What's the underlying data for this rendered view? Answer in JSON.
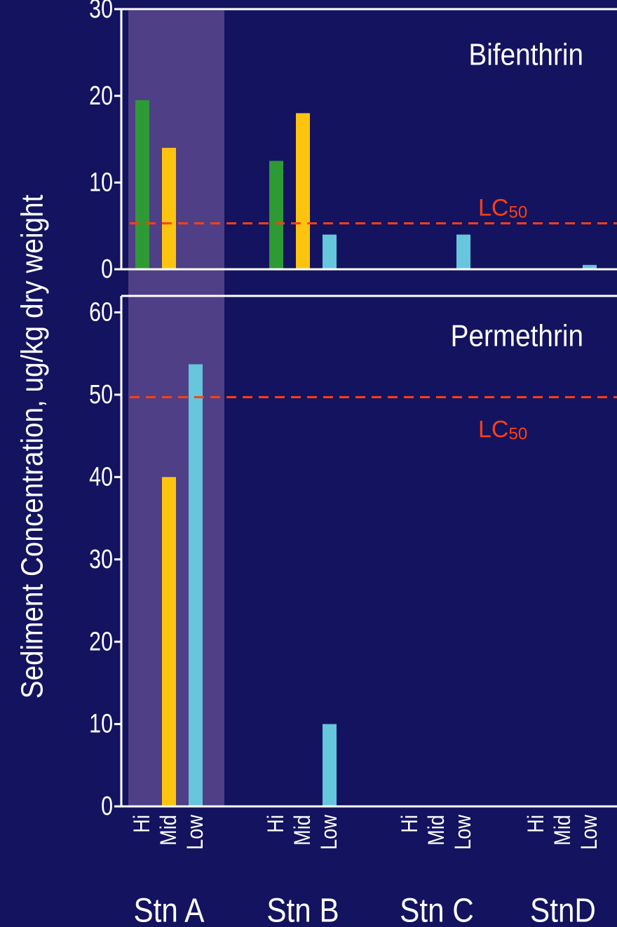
{
  "chart_data": [
    {
      "type": "bar",
      "title": "Bifenthrin",
      "ylabel": "Sediment Concentration, ug/kg dry weight",
      "ylim": [
        0,
        30
      ],
      "yticks": [
        0,
        10,
        20,
        30
      ],
      "stations": [
        "Stn A",
        "Stn B",
        "Stn C",
        "StnD"
      ],
      "levels": [
        "Hi",
        "Mid",
        "Low"
      ],
      "series": [
        {
          "name": "Hi",
          "values": [
            19.5,
            12.5,
            0,
            0
          ]
        },
        {
          "name": "Mid",
          "values": [
            14,
            18,
            0,
            0
          ]
        },
        {
          "name": "Low",
          "values": [
            0,
            4,
            4,
            0.5
          ]
        }
      ],
      "reference_line": {
        "label_main": "LC",
        "label_sub": "50",
        "value": 5.3
      },
      "highlight": "Stn A",
      "grid": false
    },
    {
      "type": "bar",
      "title": "Permethrin",
      "ylabel": "Sediment Concentration, ug/kg dry weight",
      "ylim": [
        0,
        62
      ],
      "yticks": [
        0,
        10,
        20,
        30,
        40,
        50,
        60
      ],
      "stations": [
        "Stn A",
        "Stn B",
        "Stn C",
        "StnD"
      ],
      "levels": [
        "Hi",
        "Mid",
        "Low"
      ],
      "series": [
        {
          "name": "Hi",
          "values": [
            0,
            0,
            0,
            0
          ]
        },
        {
          "name": "Mid",
          "values": [
            40,
            0,
            0,
            0
          ]
        },
        {
          "name": "Low",
          "values": [
            53.7,
            10,
            0,
            0
          ]
        }
      ],
      "reference_line": {
        "label_main": "LC",
        "label_sub": "50",
        "value": 49.7
      },
      "highlight": "Stn A",
      "grid": false
    }
  ],
  "colors": {
    "background": "#14135f",
    "highlight": "#4f3f86",
    "axis": "#ffffff",
    "Hi": "#2e9a35",
    "Mid": "#fdc40f",
    "Low": "#66c6dc",
    "reference": "#ff4012"
  }
}
